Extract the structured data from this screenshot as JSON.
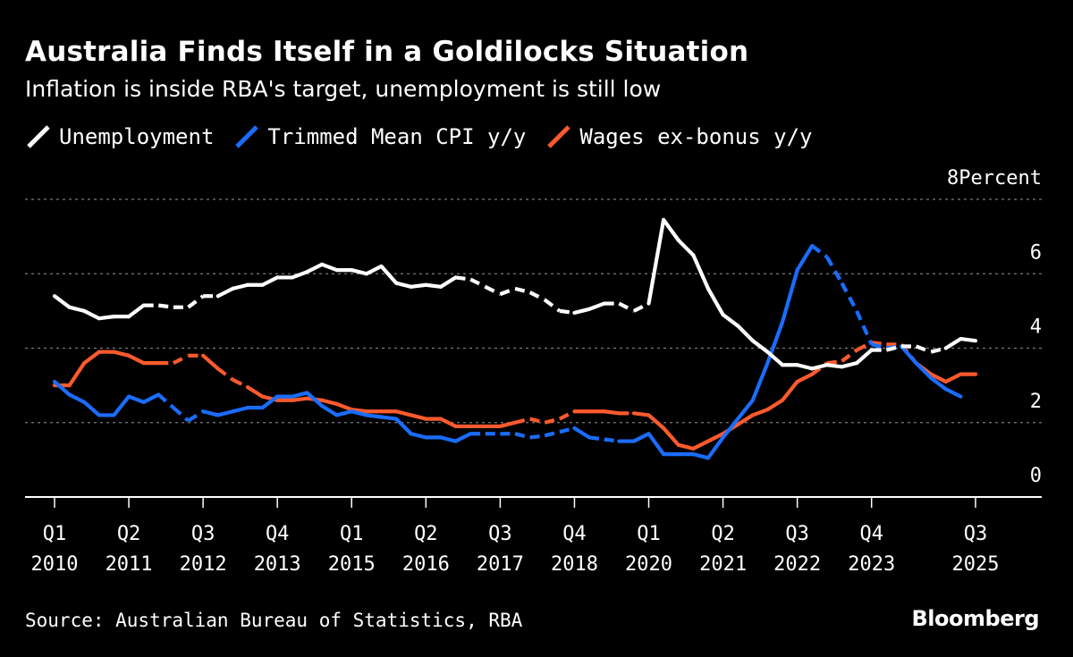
{
  "title": "Australia Finds Itself in a Goldilocks Situation",
  "subtitle": "Inflation is inside RBA's target, unemployment is still low",
  "source": "Source: Australian Bureau of Statistics, RBA",
  "brand": "Bloomberg",
  "colors": {
    "background": "#000000",
    "unemployment": "#ffffff",
    "cpi": "#1a6dff",
    "wages": "#ff5a2d",
    "grid": "#7a7a7a"
  },
  "chart_data": {
    "type": "line",
    "title": "Australia Finds Itself in a Goldilocks Situation",
    "subtitle": "Inflation is inside RBA's target, unemployment is still low",
    "ylabel": "Percent",
    "ylim": [
      0,
      8
    ],
    "yticks": [
      0,
      2,
      4,
      6,
      8
    ],
    "ytick_labels": [
      "0",
      "2",
      "4",
      "6",
      "8Percent"
    ],
    "xlim": [
      2010.0,
      2026.25
    ],
    "grid": true,
    "legend": "top-left",
    "xticks": [
      {
        "q": "Q1",
        "year": "2010",
        "t": 2010.0
      },
      {
        "q": "Q2",
        "year": "2011",
        "t": 2011.25
      },
      {
        "q": "Q3",
        "year": "2012",
        "t": 2012.5
      },
      {
        "q": "Q4",
        "year": "2013",
        "t": 2013.75
      },
      {
        "q": "Q1",
        "year": "2015",
        "t": 2015.0
      },
      {
        "q": "Q2",
        "year": "2016",
        "t": 2016.25
      },
      {
        "q": "Q3",
        "year": "2017",
        "t": 2017.5
      },
      {
        "q": "Q4",
        "year": "2018",
        "t": 2018.75
      },
      {
        "q": "Q1",
        "year": "2020",
        "t": 2020.0
      },
      {
        "q": "Q2",
        "year": "2021",
        "t": 2021.25
      },
      {
        "q": "Q3",
        "year": "2022",
        "t": 2022.5
      },
      {
        "q": "Q4",
        "year": "2023",
        "t": 2023.75
      },
      {
        "q": "Q3",
        "year": "2025",
        "t": 2025.5
      }
    ],
    "series": [
      {
        "name": "Unemployment",
        "color": "#ffffff",
        "points": [
          [
            2010.0,
            5.4,
            0
          ],
          [
            2010.25,
            5.1,
            0
          ],
          [
            2010.5,
            5.0,
            0
          ],
          [
            2010.75,
            4.8,
            0
          ],
          [
            2011.0,
            4.85,
            0
          ],
          [
            2011.25,
            4.85,
            0
          ],
          [
            2011.5,
            5.15,
            1
          ],
          [
            2011.75,
            5.15,
            1
          ],
          [
            2012.0,
            5.1,
            1
          ],
          [
            2012.25,
            5.1,
            1
          ],
          [
            2012.5,
            5.4,
            1
          ],
          [
            2012.75,
            5.4,
            0
          ],
          [
            2013.0,
            5.6,
            0
          ],
          [
            2013.25,
            5.7,
            0
          ],
          [
            2013.5,
            5.7,
            0
          ],
          [
            2013.75,
            5.9,
            0
          ],
          [
            2014.0,
            5.9,
            0
          ],
          [
            2014.25,
            6.05,
            0
          ],
          [
            2014.5,
            6.25,
            0
          ],
          [
            2014.75,
            6.1,
            0
          ],
          [
            2015.0,
            6.1,
            0
          ],
          [
            2015.25,
            6.0,
            0
          ],
          [
            2015.5,
            6.2,
            0
          ],
          [
            2015.75,
            5.75,
            0
          ],
          [
            2016.0,
            5.65,
            0
          ],
          [
            2016.25,
            5.7,
            0
          ],
          [
            2016.5,
            5.65,
            0
          ],
          [
            2016.75,
            5.9,
            1
          ],
          [
            2017.0,
            5.85,
            1
          ],
          [
            2017.25,
            5.65,
            1
          ],
          [
            2017.5,
            5.45,
            1
          ],
          [
            2017.75,
            5.6,
            1
          ],
          [
            2018.0,
            5.5,
            1
          ],
          [
            2018.25,
            5.3,
            1
          ],
          [
            2018.5,
            5.0,
            1
          ],
          [
            2018.75,
            4.95,
            0
          ],
          [
            2019.0,
            5.05,
            0
          ],
          [
            2019.25,
            5.2,
            1
          ],
          [
            2019.5,
            5.2,
            1
          ],
          [
            2019.75,
            5.0,
            1
          ],
          [
            2020.0,
            5.2,
            0
          ],
          [
            2020.25,
            7.45,
            0
          ],
          [
            2020.5,
            6.9,
            0
          ],
          [
            2020.75,
            6.5,
            0
          ],
          [
            2021.0,
            5.6,
            0
          ],
          [
            2021.25,
            4.9,
            0
          ],
          [
            2021.5,
            4.6,
            0
          ],
          [
            2021.75,
            4.2,
            0
          ],
          [
            2022.0,
            3.9,
            0
          ],
          [
            2022.25,
            3.55,
            0
          ],
          [
            2022.5,
            3.55,
            0
          ],
          [
            2022.75,
            3.45,
            0
          ],
          [
            2023.0,
            3.55,
            0
          ],
          [
            2023.25,
            3.5,
            0
          ],
          [
            2023.5,
            3.6,
            0
          ],
          [
            2023.75,
            3.95,
            1
          ],
          [
            2024.0,
            3.95,
            1
          ],
          [
            2024.25,
            4.05,
            1
          ],
          [
            2024.5,
            4.05,
            1
          ],
          [
            2024.75,
            3.9,
            1
          ],
          [
            2025.0,
            4.0,
            0
          ],
          [
            2025.25,
            4.25,
            0
          ],
          [
            2025.5,
            4.2,
            0
          ]
        ]
      },
      {
        "name": "Trimmed Mean CPI y/y",
        "color": "#1a6dff",
        "points": [
          [
            2010.0,
            3.1,
            0
          ],
          [
            2010.25,
            2.75,
            0
          ],
          [
            2010.5,
            2.55,
            0
          ],
          [
            2010.75,
            2.2,
            0
          ],
          [
            2011.0,
            2.2,
            0
          ],
          [
            2011.25,
            2.7,
            0
          ],
          [
            2011.5,
            2.55,
            0
          ],
          [
            2011.75,
            2.75,
            1
          ],
          [
            2012.0,
            2.4,
            1
          ],
          [
            2012.25,
            2.05,
            1
          ],
          [
            2012.5,
            2.3,
            0
          ],
          [
            2012.75,
            2.2,
            0
          ],
          [
            2013.0,
            2.3,
            0
          ],
          [
            2013.25,
            2.4,
            0
          ],
          [
            2013.5,
            2.4,
            0
          ],
          [
            2013.75,
            2.7,
            0
          ],
          [
            2014.0,
            2.7,
            0
          ],
          [
            2014.25,
            2.8,
            0
          ],
          [
            2014.5,
            2.45,
            0
          ],
          [
            2014.75,
            2.2,
            0
          ],
          [
            2015.0,
            2.3,
            0
          ],
          [
            2015.25,
            2.2,
            0
          ],
          [
            2015.5,
            2.15,
            0
          ],
          [
            2015.75,
            2.1,
            0
          ],
          [
            2016.0,
            1.7,
            0
          ],
          [
            2016.25,
            1.6,
            0
          ],
          [
            2016.5,
            1.6,
            0
          ],
          [
            2016.75,
            1.5,
            0
          ],
          [
            2017.0,
            1.7,
            1
          ],
          [
            2017.25,
            1.7,
            1
          ],
          [
            2017.5,
            1.7,
            1
          ],
          [
            2017.75,
            1.7,
            1
          ],
          [
            2018.0,
            1.6,
            1
          ],
          [
            2018.25,
            1.65,
            1
          ],
          [
            2018.5,
            1.75,
            1
          ],
          [
            2018.75,
            1.85,
            0
          ],
          [
            2019.0,
            1.6,
            1
          ],
          [
            2019.25,
            1.55,
            1
          ],
          [
            2019.5,
            1.5,
            0
          ],
          [
            2019.75,
            1.5,
            0
          ],
          [
            2020.0,
            1.7,
            0
          ],
          [
            2020.25,
            1.15,
            0
          ],
          [
            2020.5,
            1.15,
            0
          ],
          [
            2020.75,
            1.15,
            0
          ],
          [
            2021.0,
            1.05,
            0
          ],
          [
            2021.25,
            1.6,
            0
          ],
          [
            2021.5,
            2.1,
            0
          ],
          [
            2021.75,
            2.6,
            0
          ],
          [
            2022.0,
            3.6,
            0
          ],
          [
            2022.25,
            4.7,
            0
          ],
          [
            2022.5,
            6.1,
            0
          ],
          [
            2022.75,
            6.75,
            1
          ],
          [
            2023.0,
            6.45,
            1
          ],
          [
            2023.25,
            5.75,
            1
          ],
          [
            2023.5,
            5.0,
            1
          ],
          [
            2023.75,
            4.1,
            1
          ],
          [
            2024.0,
            4.0,
            1
          ],
          [
            2024.25,
            4.05,
            0
          ],
          [
            2024.5,
            3.6,
            0
          ],
          [
            2024.75,
            3.2,
            0
          ],
          [
            2025.0,
            2.9,
            0
          ],
          [
            2025.25,
            2.7,
            0
          ]
        ]
      },
      {
        "name": "Wages ex-bonus y/y",
        "color": "#ff5a2d",
        "points": [
          [
            2010.0,
            3.0,
            0
          ],
          [
            2010.25,
            3.0,
            0
          ],
          [
            2010.5,
            3.6,
            0
          ],
          [
            2010.75,
            3.9,
            0
          ],
          [
            2011.0,
            3.9,
            0
          ],
          [
            2011.25,
            3.8,
            0
          ],
          [
            2011.5,
            3.6,
            0
          ],
          [
            2011.75,
            3.6,
            1
          ],
          [
            2012.0,
            3.6,
            1
          ],
          [
            2012.25,
            3.8,
            1
          ],
          [
            2012.5,
            3.8,
            0
          ],
          [
            2012.75,
            3.45,
            1
          ],
          [
            2013.0,
            3.15,
            1
          ],
          [
            2013.25,
            2.95,
            0
          ],
          [
            2013.5,
            2.7,
            0
          ],
          [
            2013.75,
            2.6,
            0
          ],
          [
            2014.0,
            2.6,
            0
          ],
          [
            2014.25,
            2.65,
            0
          ],
          [
            2014.5,
            2.6,
            0
          ],
          [
            2014.75,
            2.5,
            0
          ],
          [
            2015.0,
            2.35,
            0
          ],
          [
            2015.25,
            2.3,
            0
          ],
          [
            2015.5,
            2.3,
            0
          ],
          [
            2015.75,
            2.3,
            0
          ],
          [
            2016.0,
            2.2,
            0
          ],
          [
            2016.25,
            2.1,
            0
          ],
          [
            2016.5,
            2.1,
            0
          ],
          [
            2016.75,
            1.9,
            0
          ],
          [
            2017.0,
            1.9,
            0
          ],
          [
            2017.25,
            1.9,
            0
          ],
          [
            2017.5,
            1.9,
            0
          ],
          [
            2017.75,
            2.0,
            1
          ],
          [
            2018.0,
            2.1,
            1
          ],
          [
            2018.25,
            2.0,
            1
          ],
          [
            2018.5,
            2.1,
            1
          ],
          [
            2018.75,
            2.3,
            0
          ],
          [
            2019.0,
            2.3,
            0
          ],
          [
            2019.25,
            2.3,
            0
          ],
          [
            2019.5,
            2.25,
            1
          ],
          [
            2019.75,
            2.25,
            0
          ],
          [
            2020.0,
            2.2,
            0
          ],
          [
            2020.25,
            1.85,
            0
          ],
          [
            2020.5,
            1.4,
            0
          ],
          [
            2020.75,
            1.3,
            0
          ],
          [
            2021.0,
            1.5,
            0
          ],
          [
            2021.25,
            1.7,
            0
          ],
          [
            2021.5,
            1.95,
            0
          ],
          [
            2021.75,
            2.2,
            0
          ],
          [
            2022.0,
            2.35,
            0
          ],
          [
            2022.25,
            2.6,
            0
          ],
          [
            2022.5,
            3.1,
            0
          ],
          [
            2022.75,
            3.3,
            1
          ],
          [
            2023.0,
            3.6,
            1
          ],
          [
            2023.25,
            3.65,
            1
          ],
          [
            2023.5,
            3.95,
            1
          ],
          [
            2023.75,
            4.15,
            1
          ],
          [
            2024.0,
            4.1,
            1
          ],
          [
            2024.25,
            4.1,
            1
          ],
          [
            2024.5,
            3.6,
            0
          ],
          [
            2024.75,
            3.3,
            0
          ],
          [
            2025.0,
            3.1,
            0
          ],
          [
            2025.25,
            3.3,
            0
          ],
          [
            2025.5,
            3.3,
            0
          ]
        ]
      }
    ]
  }
}
